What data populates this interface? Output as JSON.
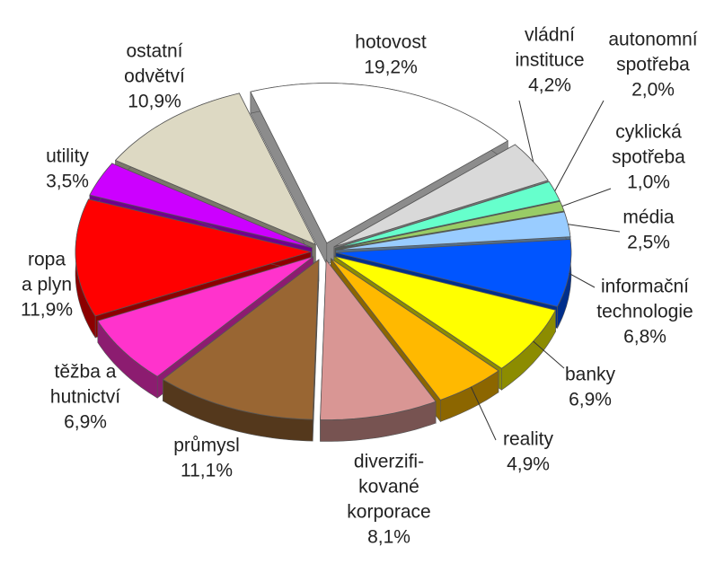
{
  "chart_data": {
    "type": "pie",
    "categories": [
      [
        "hotovost"
      ],
      [
        "vládní",
        "instituce"
      ],
      [
        "autonomní",
        "spotřeba"
      ],
      [
        "cyklická",
        "spotřeba"
      ],
      [
        "média"
      ],
      [
        "informační",
        "technologie"
      ],
      [
        "banky"
      ],
      [
        "reality"
      ],
      [
        "diverzifi-",
        "kované",
        "korporace"
      ],
      [
        "průmysl"
      ],
      [
        "těžba a",
        "hutnictví"
      ],
      [
        "ropa",
        "a plyn"
      ],
      [
        "utility"
      ],
      [
        "ostatní",
        "odvětví"
      ]
    ],
    "values": [
      19.2,
      4.2,
      2.0,
      1.0,
      2.5,
      6.8,
      6.9,
      4.9,
      8.1,
      11.1,
      6.9,
      11.9,
      3.5,
      10.9
    ],
    "value_labels": [
      "19,2%",
      "4,2%",
      "2,0%",
      "1,0%",
      "2,5%",
      "6,8%",
      "6,9%",
      "4,9%",
      "8,1%",
      "11,1%",
      "6,9%",
      "11,9%",
      "3,5%",
      "10,9%"
    ],
    "colors": [
      "#ffffff",
      "#d9d9d9",
      "#66ffcc",
      "#99cc66",
      "#99ccff",
      "#0055ff",
      "#ffff00",
      "#ffb900",
      "#d99694",
      "#996633",
      "#ff33cc",
      "#ff0000",
      "#cc00ff",
      "#ddd9c3"
    ]
  }
}
